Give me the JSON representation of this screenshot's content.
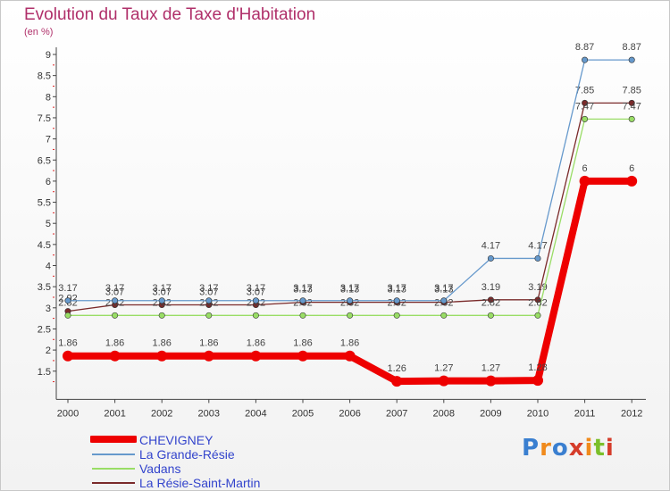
{
  "title": "Evolution du Taux de Taxe d'Habitation",
  "unit": "(en %)",
  "logo": {
    "text": "Proxiti",
    "colors": [
      "#3a7fd0",
      "#f08a1c",
      "#3a7fd0",
      "#d53c2a",
      "#f08a1c",
      "#7bbf2a",
      "#d53c2a"
    ]
  },
  "chart_data": {
    "type": "line",
    "x": [
      "2000",
      "2001",
      "2002",
      "2003",
      "2004",
      "2005",
      "2006",
      "2007",
      "2008",
      "2009",
      "2010",
      "2011",
      "2012"
    ],
    "ylim": [
      1,
      9
    ],
    "yticks": [
      "1.5",
      "2",
      "2.5",
      "3",
      "3.5",
      "4",
      "4.5",
      "5",
      "5.5",
      "6",
      "6.5",
      "7",
      "7.5",
      "8",
      "8.5",
      "9"
    ],
    "grid": false,
    "legend": "bottom-left",
    "series": [
      {
        "name": "La Résie-Saint-Martin",
        "color": "#7a2a2a",
        "width": 1.3,
        "marker": 3.2,
        "values": [
          2.92,
          3.07,
          3.07,
          3.07,
          3.07,
          3.13,
          3.13,
          3.13,
          3.13,
          3.19,
          3.19,
          7.85,
          7.85
        ],
        "labels": [
          "2.92",
          "3.07",
          "3.07",
          "3.07",
          "3.07",
          "3.13",
          "3.13",
          "3.13",
          "3.13",
          "3.19",
          "3.19",
          "7.85",
          "7.85"
        ]
      },
      {
        "name": "Vadans",
        "color": "#99dd66",
        "width": 1.3,
        "marker": 3.2,
        "values": [
          2.82,
          2.82,
          2.82,
          2.82,
          2.82,
          2.82,
          2.82,
          2.82,
          2.82,
          2.82,
          2.82,
          7.47,
          7.47
        ],
        "labels": [
          "2.82",
          "2.82",
          "2.82",
          "2.82",
          "2.82",
          "2.82",
          "2.82",
          "2.82",
          "2.82",
          "2.82",
          "2.82",
          "7.47",
          "7.47"
        ]
      },
      {
        "name": "La Grande-Résie",
        "color": "#6699cc",
        "width": 1.3,
        "marker": 3.2,
        "values": [
          3.17,
          3.17,
          3.17,
          3.17,
          3.17,
          3.17,
          3.17,
          3.17,
          3.17,
          4.17,
          4.17,
          8.87,
          8.87
        ],
        "labels": [
          "3.17",
          "3.17",
          "3.17",
          "3.17",
          "3.17",
          "3.17",
          "3.17",
          "3.17",
          "3.17",
          "4.17",
          "4.17",
          "8.87",
          "8.87"
        ]
      },
      {
        "name": "CHEVIGNEY",
        "color": "#ee0000",
        "width": 8,
        "marker": 6,
        "values": [
          1.86,
          1.86,
          1.86,
          1.86,
          1.86,
          1.86,
          1.86,
          1.26,
          1.27,
          1.27,
          1.28,
          6,
          6
        ],
        "labels": [
          "1.86",
          "1.86",
          "1.86",
          "1.86",
          "1.86",
          "1.86",
          "1.86",
          "1.26",
          "1.27",
          "1.27",
          "1.28",
          "6",
          "6"
        ]
      }
    ]
  },
  "legend_items": [
    {
      "name": "CHEVIGNEY",
      "color": "#ee0000",
      "width": 8
    },
    {
      "name": "La Grande-Résie",
      "color": "#6699cc",
      "width": 2
    },
    {
      "name": "Vadans",
      "color": "#99dd66",
      "width": 2
    },
    {
      "name": "La Résie-Saint-Martin",
      "color": "#7a2a2a",
      "width": 2
    }
  ]
}
